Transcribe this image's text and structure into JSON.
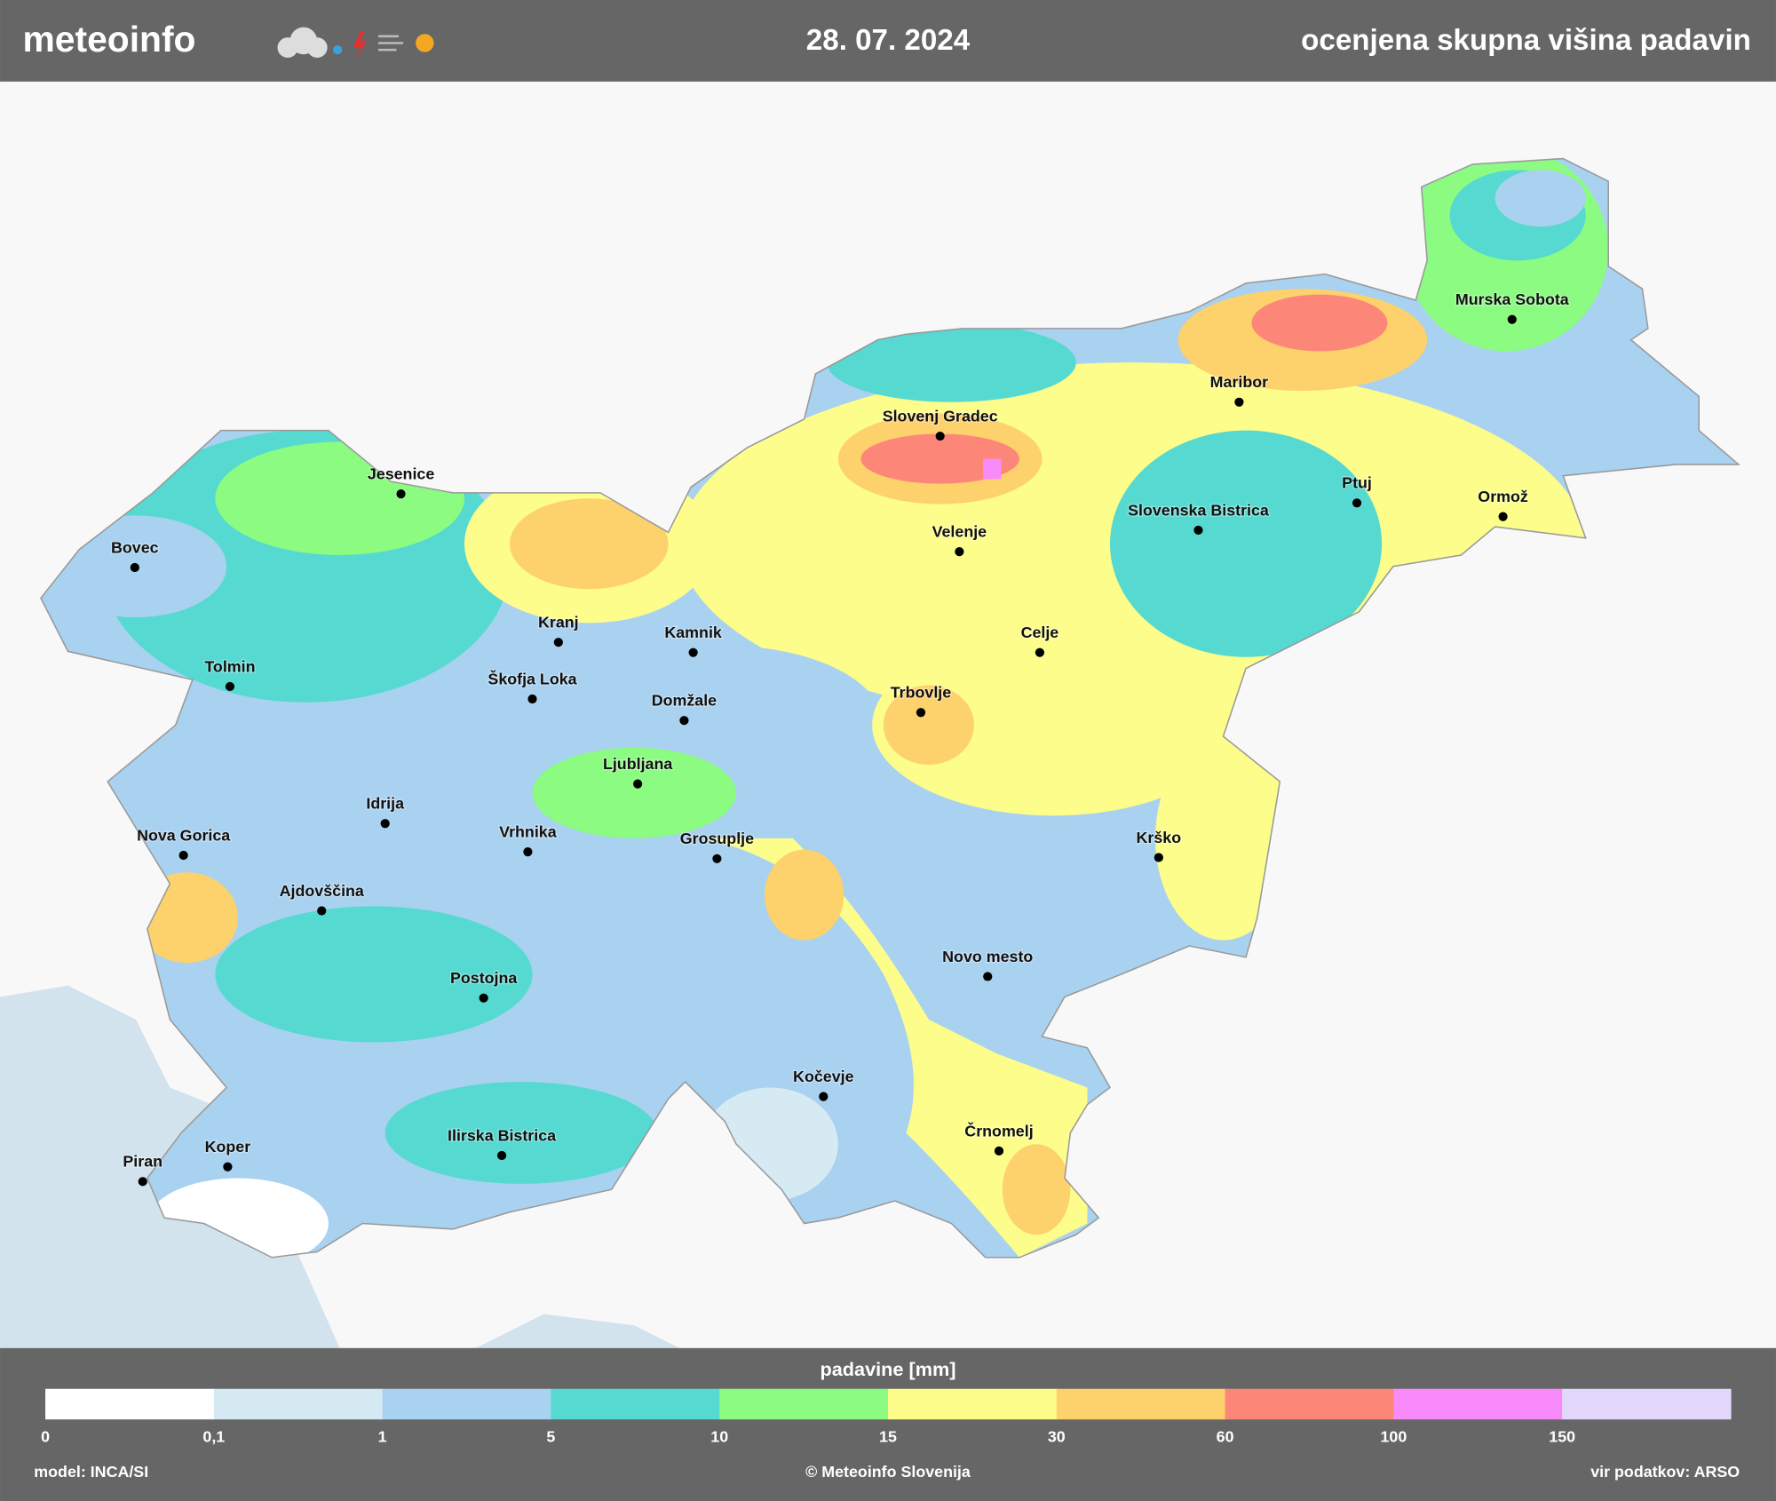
{
  "header": {
    "brand": "meteoinfo",
    "date": "28. 07. 2024",
    "title": "ocenjena skupna višina padavin"
  },
  "cities": [
    "Murska Sobota",
    "Maribor",
    "Slovenj Gradec",
    "Ptuj",
    "Ormož",
    "Slovenska Bistrica",
    "Velenje",
    "Jesenice",
    "Bovec",
    "Kranj",
    "Kamnik",
    "Celje",
    "Tolmin",
    "Škofja Loka",
    "Domžale",
    "Trbovlje",
    "Ljubljana",
    "Idrija",
    "Nova Gorica",
    "Vrhnika",
    "Grosuplje",
    "Krško",
    "Ajdovščina",
    "Novo mesto",
    "Postojna",
    "Kočevje",
    "Črnomelj",
    "Ilirska Bistrica",
    "Koper",
    "Piran"
  ],
  "legend": {
    "title": "padavine [mm]",
    "ticks": [
      0,
      {
        "value": 0.1,
        "label": "0,1"
      },
      1,
      5,
      10,
      15,
      30,
      60,
      100,
      150
    ],
    "colors": [
      "#ffffff",
      "#d6eaf3",
      "#a9d1f0",
      "#55d9d1",
      "#8bfb82",
      "#fdfd8b",
      "#fdd16b",
      "#fc8779",
      "#f98af9",
      "#e3d8fc"
    ]
  },
  "footer": {
    "model": "model: INCA/SI",
    "copyright": "© Meteoinfo Slovenija",
    "source": "vir podatkov: ARSO"
  }
}
